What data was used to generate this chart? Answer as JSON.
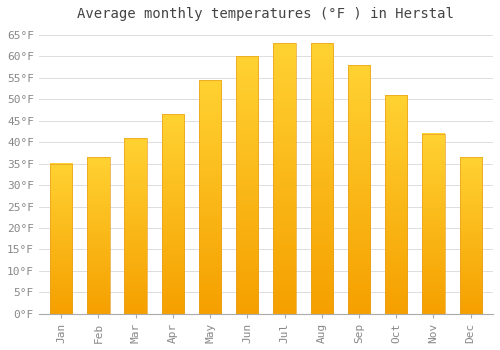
{
  "title": "Average monthly temperatures (°F ) in Herstal",
  "months": [
    "Jan",
    "Feb",
    "Mar",
    "Apr",
    "May",
    "Jun",
    "Jul",
    "Aug",
    "Sep",
    "Oct",
    "Nov",
    "Dec"
  ],
  "values": [
    35,
    36.5,
    41,
    46.5,
    54.5,
    60,
    63,
    63,
    58,
    51,
    42,
    36.5
  ],
  "bar_color_top": "#FFC926",
  "bar_color_bottom": "#F5A000",
  "bar_edge_color": "#E8A020",
  "ylim": [
    0,
    67
  ],
  "yticks": [
    0,
    5,
    10,
    15,
    20,
    25,
    30,
    35,
    40,
    45,
    50,
    55,
    60,
    65
  ],
  "ytick_labels": [
    "0°F",
    "5°F",
    "10°F",
    "15°F",
    "20°F",
    "25°F",
    "30°F",
    "35°F",
    "40°F",
    "45°F",
    "50°F",
    "55°F",
    "60°F",
    "65°F"
  ],
  "background_color": "#ffffff",
  "grid_color": "#dddddd",
  "title_fontsize": 10,
  "tick_fontsize": 8,
  "font_family": "monospace"
}
